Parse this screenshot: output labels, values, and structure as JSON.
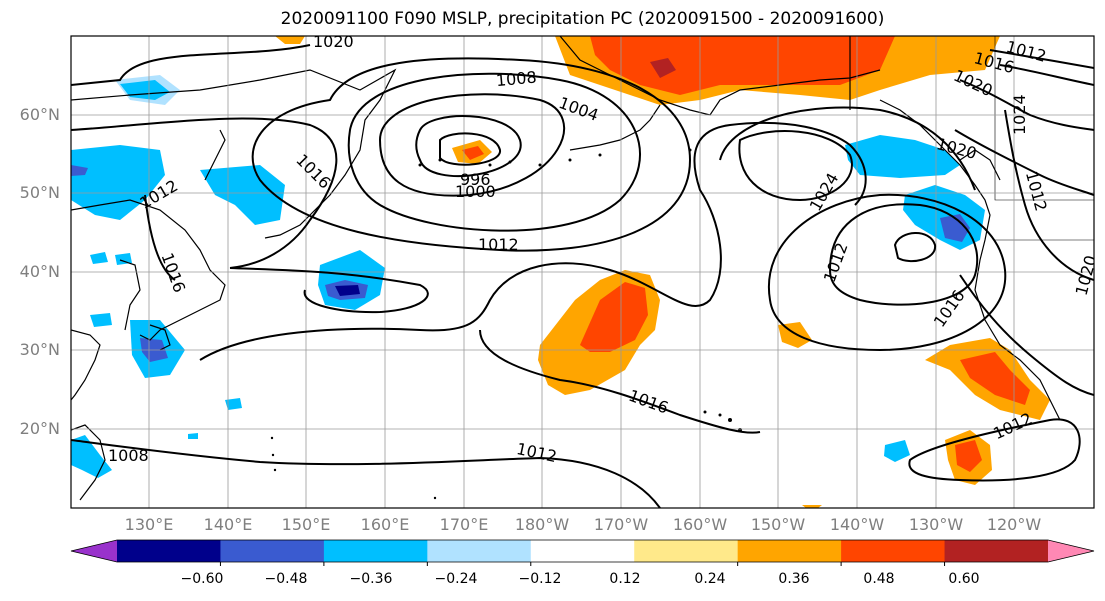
{
  "title": "2020091100 F090 MSLP, precipitation PC (2020091500 - 2020091600)",
  "latitude_labels": [
    "60°N",
    "50°N",
    "40°N",
    "30°N",
    "20°N"
  ],
  "longitude_labels": [
    "130°E",
    "140°E",
    "150°E",
    "160°E",
    "170°E",
    "180°W",
    "170°W",
    "160°W",
    "150°W",
    "140°W",
    "130°W",
    "120°W"
  ],
  "colorbar": {
    "colors": [
      "#9932cc",
      "#00008b",
      "#3a5bd0",
      "#00bfff",
      "#b0e2ff",
      "#ffffff",
      "#ffe98a",
      "#ffa500",
      "#ff4500",
      "#b22222",
      "#ff88b4"
    ],
    "tick_labels": [
      "−0.60",
      "−0.48",
      "−0.36",
      "−0.24",
      "−0.12",
      "0.12",
      "0.24",
      "0.36",
      "0.48",
      "0.60"
    ]
  },
  "isobar_labels": [
    "1020",
    "1008",
    "1004",
    "996",
    "1000",
    "1016",
    "1012",
    "1024",
    "1012",
    "1016",
    "1012",
    "1016",
    "1020",
    "1024",
    "1020",
    "1012",
    "1012",
    "1016",
    "1012",
    "1008",
    "1012",
    "1020"
  ]
}
